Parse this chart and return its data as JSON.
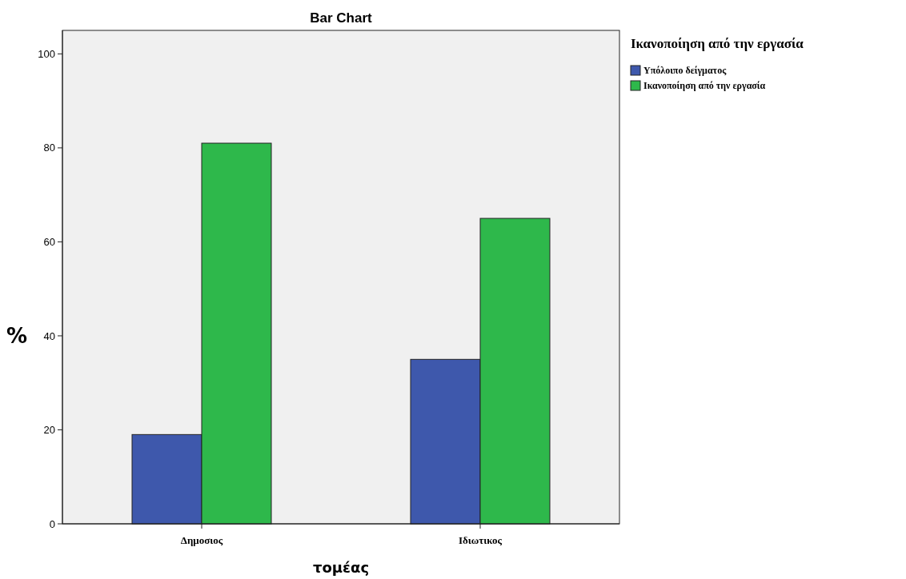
{
  "chart_data": {
    "type": "bar",
    "title": "Bar Chart",
    "xlabel": "τομέας",
    "ylabel": "%",
    "legend_title": "Ικανοποίηση από την εργασία",
    "categories": [
      "Δημοσιος",
      "Ιδιωτικος"
    ],
    "series": [
      {
        "name": "Υπόλοιπο δείγματος",
        "color": "#3e58ac",
        "values": [
          19,
          35
        ]
      },
      {
        "name": "Ικανοποίηση από την εργασία",
        "color": "#2eb84b",
        "values": [
          81,
          65
        ]
      }
    ],
    "ylim": [
      0,
      105
    ],
    "yticks": [
      0,
      20,
      40,
      60,
      80,
      100
    ],
    "grid": false,
    "legend": "top right"
  }
}
